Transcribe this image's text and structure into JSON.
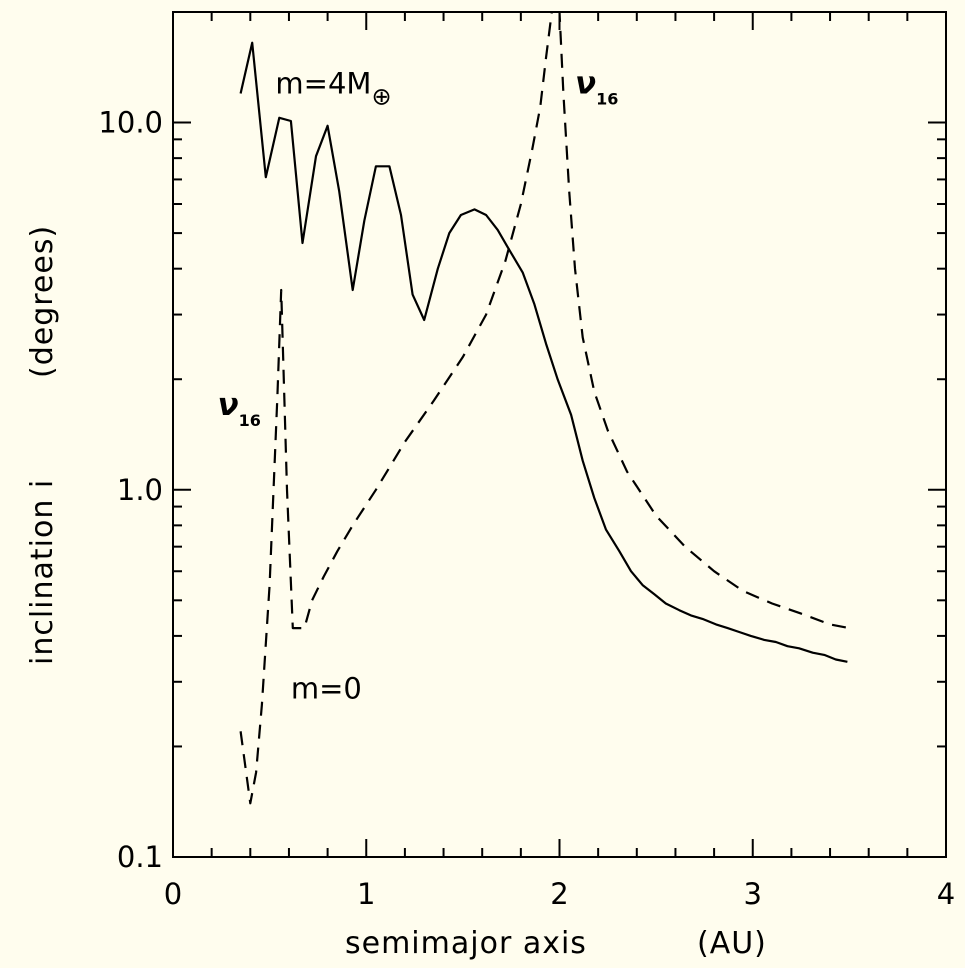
{
  "chart_data": {
    "type": "line",
    "xlabel": {
      "main": "semimajor axis",
      "unit": "(AU)"
    },
    "ylabel": {
      "main": "inclination i",
      "unit": "(degrees)"
    },
    "xlim": [
      0,
      4
    ],
    "ylim": [
      0.1,
      20
    ],
    "yscale": "log",
    "grid": false,
    "x_ticks": [
      0,
      1,
      2,
      3,
      4
    ],
    "x_tick_labels": [
      "0",
      "1",
      "2",
      "3",
      "4"
    ],
    "y_ticks": [
      0.1,
      1.0,
      10.0
    ],
    "y_tick_labels": [
      "0.1",
      "1.0",
      "10.0"
    ],
    "series": [
      {
        "style": "solid",
        "x": [
          0.35,
          0.41,
          0.48,
          0.55,
          0.61,
          0.67,
          0.74,
          0.8,
          0.86,
          0.93,
          0.99,
          1.05,
          1.12,
          1.18,
          1.24,
          1.3,
          1.37,
          1.43,
          1.49,
          1.56,
          1.62,
          1.68,
          1.74,
          1.81,
          1.87,
          1.93,
          1.99,
          2.06,
          2.12,
          2.18,
          2.24,
          2.31,
          2.37,
          2.43,
          2.49,
          2.55,
          2.62,
          2.68,
          2.74,
          2.81,
          2.87,
          2.93,
          2.99,
          3.06,
          3.12,
          3.18,
          3.24,
          3.31,
          3.37,
          3.43,
          3.49
        ],
        "y": [
          12.0,
          16.5,
          7.1,
          10.3,
          10.1,
          4.7,
          8.1,
          9.8,
          6.5,
          3.5,
          5.4,
          7.6,
          7.6,
          5.6,
          3.4,
          2.9,
          4.0,
          5.0,
          5.6,
          5.8,
          5.6,
          5.1,
          4.5,
          3.9,
          3.2,
          2.5,
          2.0,
          1.6,
          1.2,
          0.95,
          0.78,
          0.68,
          0.6,
          0.55,
          0.52,
          0.49,
          0.47,
          0.455,
          0.445,
          0.43,
          0.42,
          0.41,
          0.4,
          0.39,
          0.385,
          0.375,
          0.37,
          0.36,
          0.355,
          0.345,
          0.34
        ]
      },
      {
        "style": "dashed",
        "x": [
          0.35,
          0.4,
          0.43,
          0.46,
          0.5,
          0.54,
          0.56,
          0.59,
          0.62,
          0.68,
          0.72,
          0.78,
          0.85,
          0.93,
          1.05,
          1.2,
          1.35,
          1.5,
          1.62,
          1.72,
          1.8,
          1.86,
          1.9,
          1.93,
          1.96,
          1.98,
          2.0,
          2.02,
          2.05,
          2.08,
          2.12,
          2.18,
          2.25,
          2.35,
          2.5,
          2.65,
          2.8,
          2.95,
          3.1,
          3.25,
          3.4,
          3.5
        ],
        "y": [
          0.22,
          0.14,
          0.17,
          0.26,
          0.55,
          1.8,
          3.5,
          1.0,
          0.42,
          0.42,
          0.5,
          0.58,
          0.68,
          0.8,
          1.0,
          1.35,
          1.75,
          2.3,
          3.0,
          4.2,
          6.0,
          8.5,
          11.0,
          15.0,
          20.0,
          25.0,
          20.0,
          12.0,
          6.5,
          4.0,
          2.6,
          1.85,
          1.45,
          1.12,
          0.85,
          0.7,
          0.6,
          0.53,
          0.49,
          0.46,
          0.43,
          0.42
        ]
      }
    ],
    "annotations": [
      {
        "id": "m4",
        "base": "m=4M",
        "sub": "⊕",
        "x": 0.53,
        "y": 12.0
      },
      {
        "id": "nu_right",
        "base": "ν",
        "sub": "16",
        "x": 2.08,
        "y": 12.0
      },
      {
        "id": "nu_left",
        "base": "ν",
        "sub": "16",
        "x": 0.23,
        "y": 1.6
      },
      {
        "id": "m0",
        "base": "m=0",
        "sub": "",
        "x": 0.61,
        "y": 0.27
      }
    ]
  }
}
